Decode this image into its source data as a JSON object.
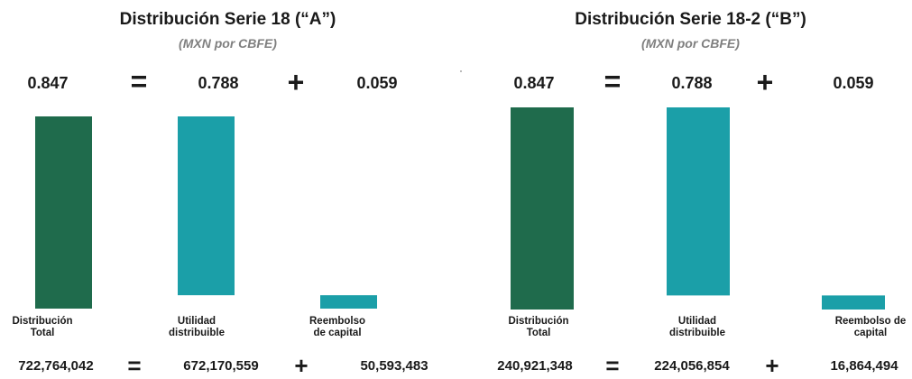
{
  "colors": {
    "total": "#1f6b4c",
    "utilidad": "#1b9fa8",
    "reembolso": "#1b9fa8"
  },
  "chart_data": [
    {
      "type": "bar",
      "title": "Distribución Serie 18 (“A”)",
      "subtitle": "(MXN por CBFE)",
      "categories": [
        [
          "Distribución",
          "Total"
        ],
        [
          "Utilidad",
          "distribuible"
        ],
        [
          "Reembolso",
          "de capital"
        ]
      ],
      "style": "waterfall",
      "values": [
        0.847,
        0.788,
        0.059
      ],
      "value_labels": [
        "0.847",
        "0.788",
        "0.059"
      ],
      "totals": [
        "722,764,042",
        "672,170,559",
        "50,593,483"
      ],
      "operators": [
        "=",
        "+"
      ]
    },
    {
      "type": "bar",
      "title": "Distribución Serie 18-2 (“B”)",
      "subtitle": "(MXN por CBFE)",
      "categories": [
        [
          "Distribución",
          "Total"
        ],
        [
          "Utilidad",
          "distribuible"
        ],
        [
          "Reembolso de",
          "capital"
        ]
      ],
      "style": "waterfall",
      "values": [
        0.847,
        0.788,
        0.059
      ],
      "value_labels": [
        "0.847",
        "0.788",
        "0.059"
      ],
      "totals": [
        "240,921,348",
        "224,056,854",
        "16,864,494"
      ],
      "operators": [
        "=",
        "+"
      ]
    }
  ]
}
